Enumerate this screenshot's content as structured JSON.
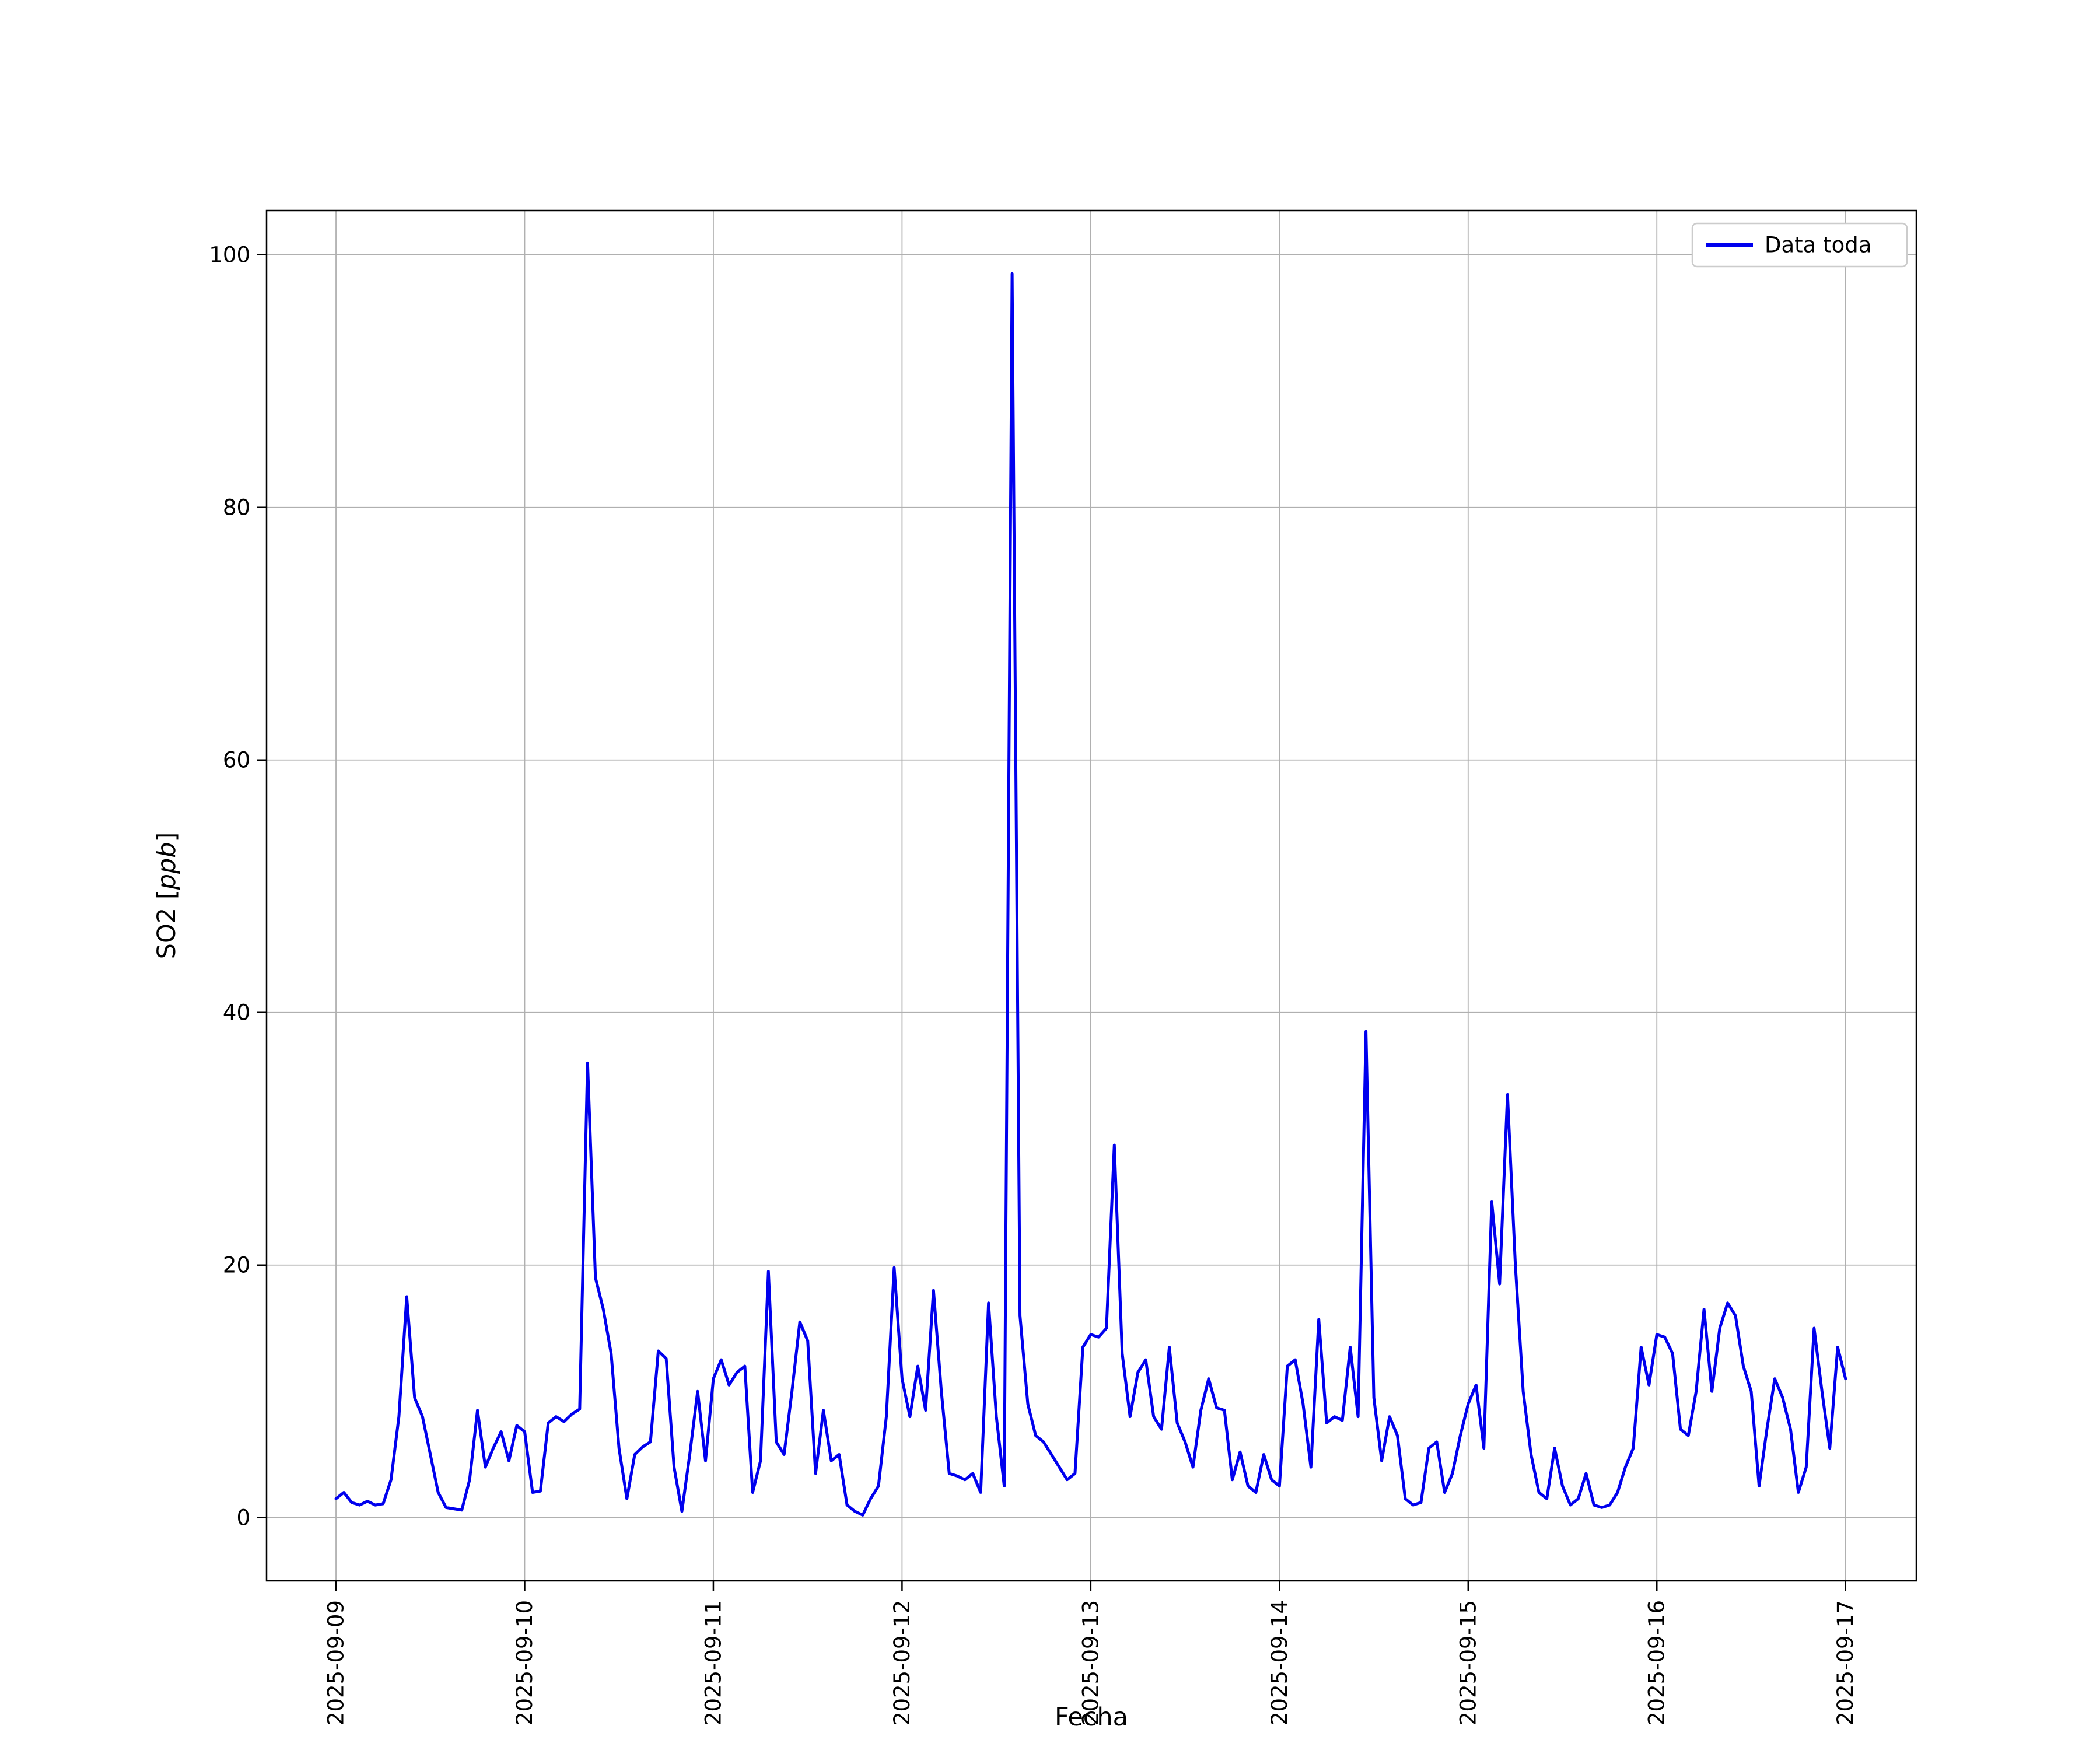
{
  "figure": {
    "background": "#ffffff"
  },
  "chart_data": {
    "type": "line",
    "title": "",
    "xlabel": "Fecha",
    "ylabel": "SO2 [ppb]",
    "ylabel_prefix": "SO2 [",
    "ylabel_italic": "ppb",
    "ylabel_suffix": "]",
    "legend": {
      "label": "Data toda",
      "position": "upper right"
    },
    "line_color": "#0000ee",
    "grid": true,
    "grid_color": "#b0b0b0",
    "x_tick_labels": [
      "2025-09-09",
      "2025-09-10",
      "2025-09-11",
      "2025-09-12",
      "2025-09-13",
      "2025-09-14",
      "2025-09-15",
      "2025-09-16",
      "2025-09-17"
    ],
    "y_ticks": [
      0,
      20,
      40,
      60,
      80,
      100
    ],
    "x_start": "2025-09-09",
    "points_per_day": 24,
    "x_range_days": [
      -0.368,
      8.375
    ],
    "y_range": [
      -5,
      103.5
    ],
    "values": [
      1.5,
      2.0,
      1.2,
      1.0,
      1.3,
      1.0,
      1.1,
      3.0,
      8.0,
      17.5,
      9.5,
      8.0,
      5.0,
      2.0,
      0.8,
      0.7,
      0.6,
      3.0,
      8.5,
      4.0,
      5.5,
      6.8,
      4.5,
      7.3,
      6.8,
      2.0,
      2.1,
      7.5,
      8.0,
      7.6,
      8.2,
      8.6,
      36.0,
      19.0,
      16.5,
      13.0,
      5.5,
      1.5,
      5.0,
      5.6,
      6.0,
      13.2,
      12.6,
      4.0,
      0.5,
      5.0,
      10.0,
      4.5,
      11.0,
      12.5,
      10.5,
      11.5,
      12.0,
      2.0,
      4.5,
      19.5,
      6.0,
      5.0,
      10.0,
      15.5,
      14.0,
      3.5,
      8.5,
      4.5,
      5.0,
      1.0,
      0.5,
      0.2,
      1.5,
      2.5,
      8.0,
      19.8,
      11.0,
      8.0,
      12.0,
      8.5,
      18.0,
      10.0,
      3.5,
      3.3,
      3.0,
      3.5,
      2.0,
      17.0,
      8.0,
      2.5,
      98.5,
      16.0,
      9.0,
      6.5,
      6.0,
      5.0,
      4.0,
      3.0,
      3.5,
      13.5,
      14.5,
      14.3,
      15.0,
      29.5,
      13.0,
      8.0,
      11.5,
      12.5,
      8.0,
      7.0,
      13.5,
      7.5,
      6.0,
      4.0,
      8.5,
      11.0,
      8.7,
      8.5,
      3.0,
      5.2,
      2.5,
      2.0,
      5.0,
      3.0,
      2.5,
      12.0,
      12.5,
      9.0,
      4.0,
      15.7,
      7.5,
      8.0,
      7.7,
      13.5,
      8.0,
      38.5,
      9.5,
      4.5,
      8.0,
      6.5,
      1.5,
      1.0,
      1.2,
      5.5,
      6.0,
      2.0,
      3.5,
      6.5,
      9.0,
      10.5,
      5.5,
      25.0,
      18.5,
      33.5,
      20.0,
      10.0,
      5.0,
      2.0,
      1.5,
      5.5,
      2.5,
      1.0,
      1.5,
      3.5,
      1.0,
      0.8,
      1.0,
      2.0,
      4.0,
      5.5,
      13.5,
      10.5,
      14.5,
      14.3,
      13.0,
      7.0,
      6.5,
      10.0,
      16.5,
      10.0,
      15.0,
      17.0,
      16.0,
      12.0,
      10.0,
      2.5,
      7.0,
      11.0,
      9.5,
      7.0,
      2.0,
      4.0,
      15.0,
      10.0,
      5.5,
      13.5,
      11.0
    ]
  }
}
